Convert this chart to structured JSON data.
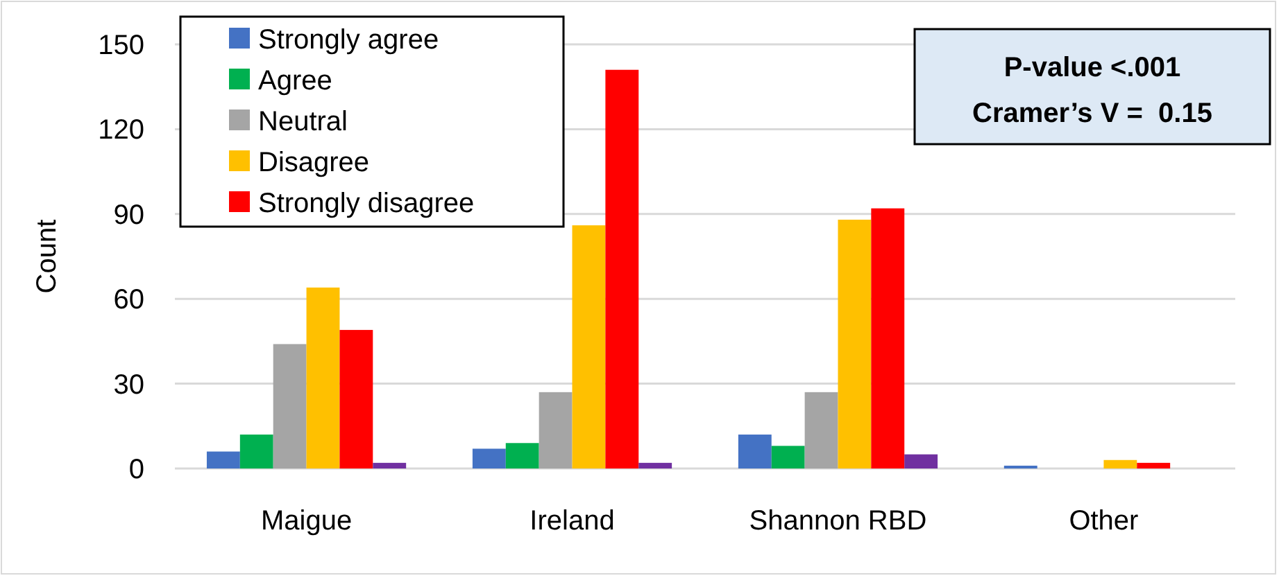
{
  "chart_data": {
    "type": "bar",
    "ylabel": "Count",
    "categories": [
      "Maigue",
      "Ireland",
      "Shannon RBD",
      "Other"
    ],
    "series": [
      {
        "name": "Strongly agree",
        "color": "#4472c4",
        "values": [
          6,
          7,
          12,
          1
        ]
      },
      {
        "name": "Agree",
        "color": "#00b050",
        "values": [
          12,
          9,
          8,
          0
        ]
      },
      {
        "name": "Neutral",
        "color": "#a5a5a5",
        "values": [
          44,
          27,
          27,
          0
        ]
      },
      {
        "name": "Disagree",
        "color": "#ffc000",
        "values": [
          64,
          86,
          88,
          3
        ]
      },
      {
        "name": "Strongly disagree",
        "color": "#ff0000",
        "values": [
          49,
          141,
          92,
          2
        ]
      },
      {
        "color": "#7030a0",
        "values": [
          2,
          2,
          5,
          0
        ]
      }
    ],
    "ylim": [
      0,
      150
    ],
    "yticks": [
      0,
      30,
      60,
      90,
      120,
      150
    ],
    "grid": "y",
    "legend": "top left",
    "annotations": [
      "P-value <.001",
      "Cramer’s V =  0.15"
    ]
  }
}
